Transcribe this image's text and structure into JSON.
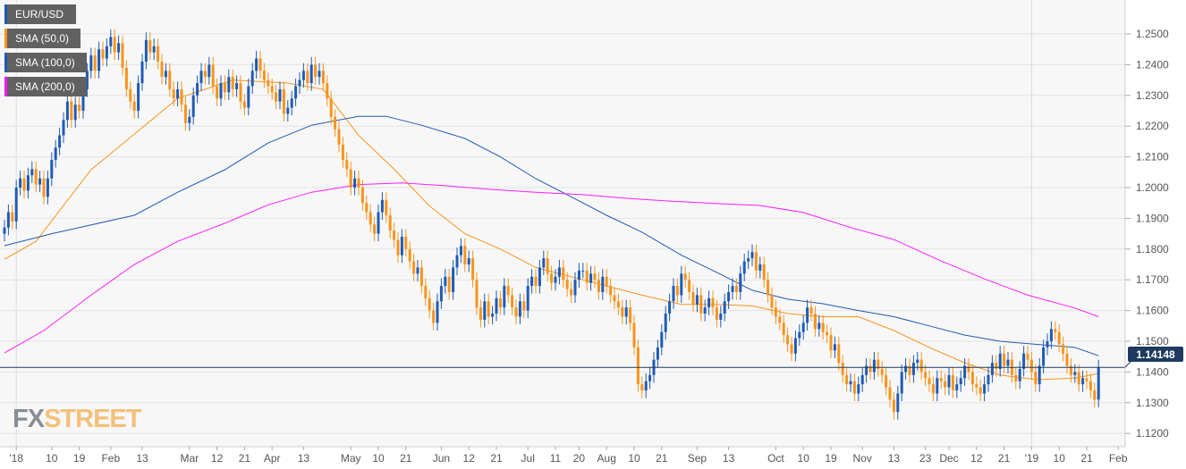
{
  "chart_data": {
    "type": "candlestick",
    "title": "EUR/USD",
    "legend": [
      {
        "label": "EUR/USD",
        "color": "#1f5bb5"
      },
      {
        "label": "SMA (50,0)",
        "color": "#f7941d"
      },
      {
        "label": "SMA (100,0)",
        "color": "#1f5bb5"
      },
      {
        "label": "SMA (200,0)",
        "color": "#ff1aff"
      }
    ],
    "legend_position": "top-left",
    "colors": {
      "up": "#1f5bb5",
      "down": "#f7941d",
      "last_price": "#1e3a5f"
    },
    "ylim": [
      1.118,
      1.261
    ],
    "y_ticks": [
      "1.2500",
      "1.2400",
      "1.2300",
      "1.2200",
      "1.2100",
      "1.2000",
      "1.1900",
      "1.1800",
      "1.1700",
      "1.1600",
      "1.1500",
      "1.1400",
      "1.1300",
      "1.1200"
    ],
    "x_ticks": [
      {
        "label": "'18",
        "i": 3
      },
      {
        "label": "10",
        "i": 12
      },
      {
        "label": "19",
        "i": 19
      },
      {
        "label": "Feb",
        "i": 27
      },
      {
        "label": "13",
        "i": 35
      },
      {
        "label": "Mar",
        "i": 47
      },
      {
        "label": "12",
        "i": 54
      },
      {
        "label": "21",
        "i": 61
      },
      {
        "label": "Apr",
        "i": 68
      },
      {
        "label": "13",
        "i": 76
      },
      {
        "label": "May",
        "i": 88
      },
      {
        "label": "10",
        "i": 95
      },
      {
        "label": "21",
        "i": 102
      },
      {
        "label": "Jun",
        "i": 111
      },
      {
        "label": "12",
        "i": 118
      },
      {
        "label": "21",
        "i": 125
      },
      {
        "label": "Jul",
        "i": 133
      },
      {
        "label": "11",
        "i": 140
      },
      {
        "label": "20",
        "i": 146
      },
      {
        "label": "Aug",
        "i": 153
      },
      {
        "label": "10",
        "i": 160
      },
      {
        "label": "21",
        "i": 167
      },
      {
        "label": "Sep",
        "i": 176
      },
      {
        "label": "13",
        "i": 184
      },
      {
        "label": "Oct",
        "i": 196
      },
      {
        "label": "10",
        "i": 203
      },
      {
        "label": "19",
        "i": 210
      },
      {
        "label": "Nov",
        "i": 218
      },
      {
        "label": "13",
        "i": 226
      },
      {
        "label": "23",
        "i": 234
      },
      {
        "label": "Dec",
        "i": 240
      },
      {
        "label": "12",
        "i": 247
      },
      {
        "label": "21",
        "i": 254
      },
      {
        "label": "'19",
        "i": 261
      },
      {
        "label": "10",
        "i": 268
      },
      {
        "label": "21",
        "i": 275
      },
      {
        "label": "Feb",
        "i": 283
      }
    ],
    "last_price": "1.14148",
    "last_price_value": 1.14148,
    "closes": [
      1.187,
      1.192,
      1.189,
      1.2,
      1.203,
      1.199,
      1.204,
      1.206,
      1.201,
      1.203,
      1.197,
      1.203,
      1.209,
      1.213,
      1.217,
      1.222,
      1.228,
      1.222,
      1.227,
      1.225,
      1.232,
      1.238,
      1.243,
      1.238,
      1.245,
      1.242,
      1.246,
      1.249,
      1.244,
      1.247,
      1.239,
      1.232,
      1.228,
      1.225,
      1.234,
      1.241,
      1.248,
      1.244,
      1.246,
      1.241,
      1.236,
      1.238,
      1.232,
      1.229,
      1.232,
      1.227,
      1.221,
      1.223,
      1.23,
      1.234,
      1.238,
      1.236,
      1.24,
      1.233,
      1.229,
      1.234,
      1.231,
      1.236,
      1.232,
      1.234,
      1.228,
      1.226,
      1.233,
      1.238,
      1.242,
      1.238,
      1.235,
      1.233,
      1.231,
      1.228,
      1.232,
      1.224,
      1.226,
      1.229,
      1.233,
      1.235,
      1.238,
      1.234,
      1.24,
      1.236,
      1.238,
      1.234,
      1.229,
      1.223,
      1.219,
      1.214,
      1.209,
      1.206,
      1.2,
      1.203,
      1.2,
      1.195,
      1.192,
      1.188,
      1.185,
      1.192,
      1.196,
      1.191,
      1.186,
      1.183,
      1.178,
      1.184,
      1.18,
      1.176,
      1.172,
      1.174,
      1.168,
      1.164,
      1.16,
      1.156,
      1.163,
      1.168,
      1.171,
      1.166,
      1.174,
      1.178,
      1.181,
      1.175,
      1.177,
      1.17,
      1.161,
      1.157,
      1.163,
      1.158,
      1.159,
      1.164,
      1.161,
      1.168,
      1.165,
      1.161,
      1.158,
      1.163,
      1.16,
      1.168,
      1.171,
      1.168,
      1.174,
      1.177,
      1.172,
      1.169,
      1.171,
      1.174,
      1.17,
      1.167,
      1.165,
      1.17,
      1.173,
      1.173,
      1.169,
      1.172,
      1.17,
      1.166,
      1.171,
      1.168,
      1.165,
      1.163,
      1.161,
      1.158,
      1.161,
      1.156,
      1.148,
      1.136,
      1.134,
      1.137,
      1.139,
      1.144,
      1.148,
      1.153,
      1.159,
      1.163,
      1.168,
      1.165,
      1.172,
      1.17,
      1.166,
      1.162,
      1.165,
      1.159,
      1.161,
      1.164,
      1.161,
      1.157,
      1.159,
      1.163,
      1.166,
      1.168,
      1.166,
      1.172,
      1.176,
      1.177,
      1.179,
      1.173,
      1.175,
      1.17,
      1.165,
      1.161,
      1.158,
      1.156,
      1.152,
      1.149,
      1.146,
      1.151,
      1.153,
      1.156,
      1.161,
      1.159,
      1.154,
      1.156,
      1.153,
      1.152,
      1.147,
      1.149,
      1.143,
      1.139,
      1.136,
      1.137,
      1.133,
      1.136,
      1.139,
      1.142,
      1.14,
      1.144,
      1.141,
      1.139,
      1.135,
      1.131,
      1.127,
      1.133,
      1.14,
      1.142,
      1.139,
      1.143,
      1.144,
      1.14,
      1.138,
      1.136,
      1.133,
      1.138,
      1.137,
      1.135,
      1.139,
      1.134,
      1.136,
      1.138,
      1.142,
      1.14,
      1.136,
      1.135,
      1.133,
      1.136,
      1.139,
      1.143,
      1.141,
      1.146,
      1.142,
      1.144,
      1.139,
      1.137,
      1.141,
      1.146,
      1.144,
      1.14,
      1.136,
      1.142,
      1.148,
      1.15,
      1.154,
      1.153,
      1.149,
      1.146,
      1.142,
      1.139,
      1.14,
      1.136,
      1.138,
      1.137,
      1.134,
      1.131,
      1.14148
    ],
    "sma": [
      {
        "name": "SMA (50,0)",
        "color": "#f7941d",
        "points": [
          [
            0,
            1.1767
          ],
          [
            8,
            1.1825
          ],
          [
            22,
            1.2058
          ],
          [
            33,
            1.2174
          ],
          [
            44,
            1.229
          ],
          [
            58,
            1.235
          ],
          [
            72,
            1.234
          ],
          [
            81,
            1.232
          ],
          [
            90,
            1.217
          ],
          [
            99,
            1.206
          ],
          [
            108,
            1.194
          ],
          [
            117,
            1.185
          ],
          [
            126,
            1.18
          ],
          [
            135,
            1.174
          ],
          [
            144,
            1.171
          ],
          [
            153,
            1.168
          ],
          [
            162,
            1.165
          ],
          [
            172,
            1.162
          ],
          [
            181,
            1.162
          ],
          [
            190,
            1.1615
          ],
          [
            199,
            1.159
          ],
          [
            208,
            1.158
          ],
          [
            217,
            1.158
          ],
          [
            226,
            1.1535
          ],
          [
            235,
            1.148
          ],
          [
            244,
            1.143
          ],
          [
            253,
            1.139
          ],
          [
            262,
            1.1375
          ],
          [
            272,
            1.138
          ],
          [
            278,
            1.1395
          ]
        ]
      },
      {
        "name": "SMA (100,0)",
        "color": "#1f5bb5",
        "points": [
          [
            0,
            1.1811
          ],
          [
            12,
            1.185
          ],
          [
            33,
            1.191
          ],
          [
            44,
            1.1985
          ],
          [
            56,
            1.2058
          ],
          [
            67,
            1.2145
          ],
          [
            78,
            1.2203
          ],
          [
            90,
            1.2232
          ],
          [
            97,
            1.2232
          ],
          [
            106,
            1.2203
          ],
          [
            117,
            1.216
          ],
          [
            126,
            1.21
          ],
          [
            135,
            1.2029
          ],
          [
            144,
            1.197
          ],
          [
            153,
            1.191
          ],
          [
            162,
            1.1855
          ],
          [
            172,
            1.178
          ],
          [
            181,
            1.1724
          ],
          [
            190,
            1.1666
          ],
          [
            199,
            1.1637
          ],
          [
            208,
            1.1622
          ],
          [
            217,
            1.16
          ],
          [
            226,
            1.158
          ],
          [
            235,
            1.155
          ],
          [
            244,
            1.152
          ],
          [
            253,
            1.15
          ],
          [
            262,
            1.149
          ],
          [
            272,
            1.148
          ],
          [
            278,
            1.1453
          ]
        ]
      },
      {
        "name": "SMA (200,0)",
        "color": "#ff1aff",
        "points": [
          [
            0,
            1.1462
          ],
          [
            10,
            1.1535
          ],
          [
            22,
            1.165
          ],
          [
            33,
            1.175
          ],
          [
            44,
            1.1825
          ],
          [
            56,
            1.1884
          ],
          [
            67,
            1.1944
          ],
          [
            78,
            1.1985
          ],
          [
            90,
            1.201
          ],
          [
            101,
            1.2015
          ],
          [
            112,
            1.2006
          ],
          [
            124,
            1.1994
          ],
          [
            135,
            1.1985
          ],
          [
            147,
            1.1977
          ],
          [
            158,
            1.1965
          ],
          [
            169,
            1.1956
          ],
          [
            181,
            1.1948
          ],
          [
            192,
            1.1942
          ],
          [
            203,
            1.1919
          ],
          [
            215,
            1.187
          ],
          [
            226,
            1.1831
          ],
          [
            237,
            1.1767
          ],
          [
            249,
            1.1703
          ],
          [
            260,
            1.165
          ],
          [
            272,
            1.1608
          ],
          [
            278,
            1.158
          ]
        ]
      }
    ]
  },
  "watermark": {
    "part1": "FX",
    "part2": "STREET"
  }
}
